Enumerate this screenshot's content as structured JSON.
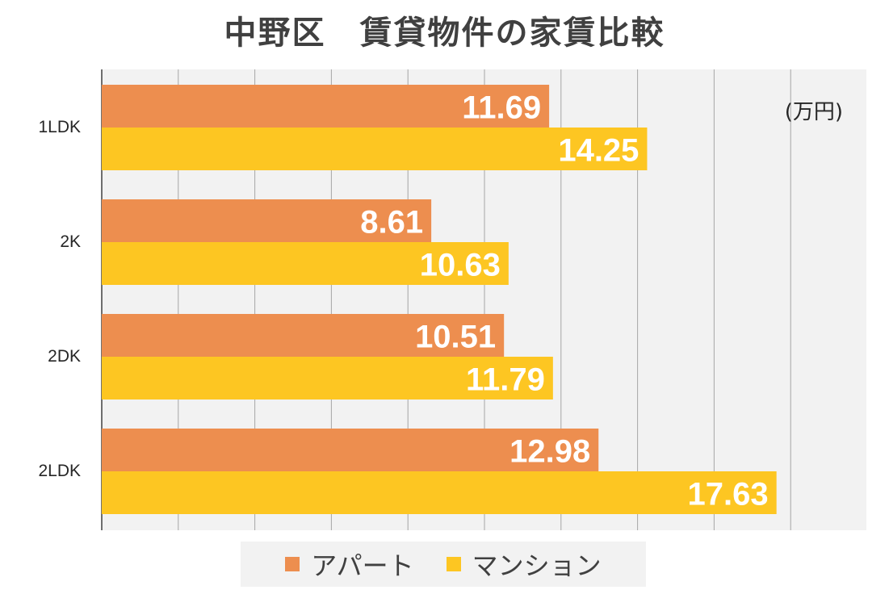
{
  "chart_data": {
    "type": "bar",
    "orientation": "horizontal",
    "title": "中野区　賃貸物件の家賃比較",
    "unit": "(万円)",
    "categories": [
      "1LDK",
      "2K",
      "2DK",
      "2LDK"
    ],
    "series": [
      {
        "name": "アパート",
        "color": "#ed8e4f",
        "values": [
          11.69,
          8.61,
          10.51,
          12.98
        ]
      },
      {
        "name": "マンション",
        "color": "#fdc622",
        "values": [
          14.25,
          10.63,
          11.79,
          17.63
        ]
      }
    ],
    "xlim": [
      0,
      20
    ],
    "grid": true,
    "legend": "bottom",
    "colors": {
      "plot_bg": "#f2f2f2",
      "grid": "#a6a6a6",
      "label_text": "#ffffff",
      "title_text": "#404040"
    }
  }
}
